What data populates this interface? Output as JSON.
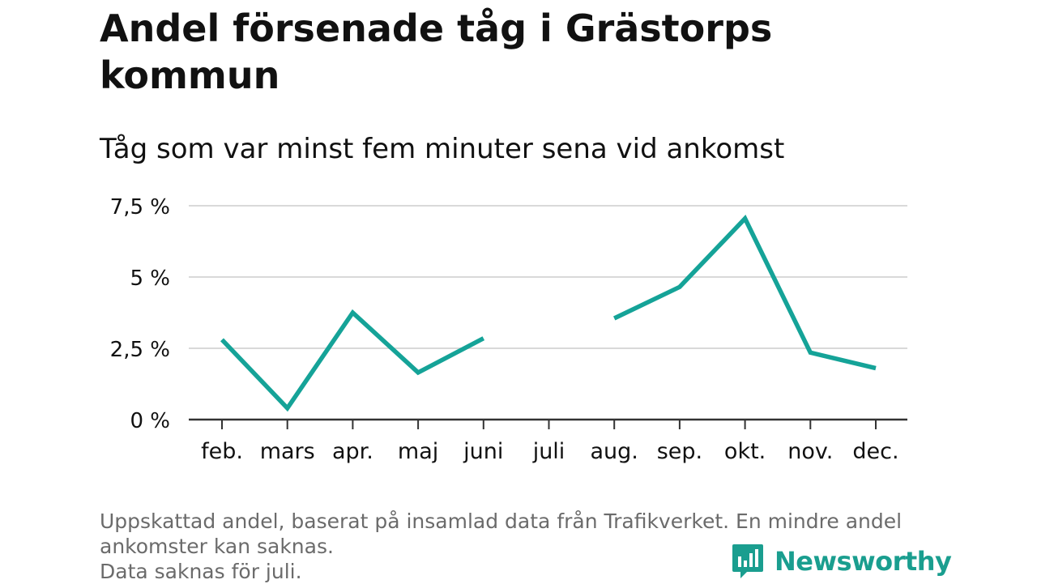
{
  "title": "Andel försenade tåg i Grästorps kommun",
  "subtitle": "Tåg som var minst fem minuter sena vid ankomst",
  "colors": {
    "line": "#15a398",
    "grid": "#d9d9d9",
    "axis": "#333333",
    "text": "#111111",
    "footnote": "#6b6b6b",
    "brand": "#1a9e8f"
  },
  "footnote": {
    "line1": "Uppskattad andel, baserat på insamlad data från Trafikverket. En mindre andel",
    "line2": "ankomster kan saknas.",
    "line3": "Data saknas för juli."
  },
  "brand": {
    "name": "Newsworthy",
    "icon": "newsworthy-logo-icon"
  },
  "chart_data": {
    "type": "line",
    "categories": [
      "feb.",
      "mars",
      "apr.",
      "maj",
      "juni",
      "juli",
      "aug.",
      "sep.",
      "okt.",
      "nov.",
      "dec."
    ],
    "series": [
      {
        "values": [
          2.8,
          0.4,
          3.75,
          1.65,
          2.85,
          null,
          3.55,
          4.65,
          7.05,
          2.35,
          1.8
        ]
      }
    ],
    "y_ticks": [
      0,
      2.5,
      5,
      7.5
    ],
    "y_tick_labels": [
      "0 %",
      "2,5 %",
      "5 %",
      "7,5 %"
    ],
    "ylim": [
      0,
      7.5
    ],
    "xlabel": "",
    "ylabel": "",
    "grid": true,
    "legend": "none"
  }
}
